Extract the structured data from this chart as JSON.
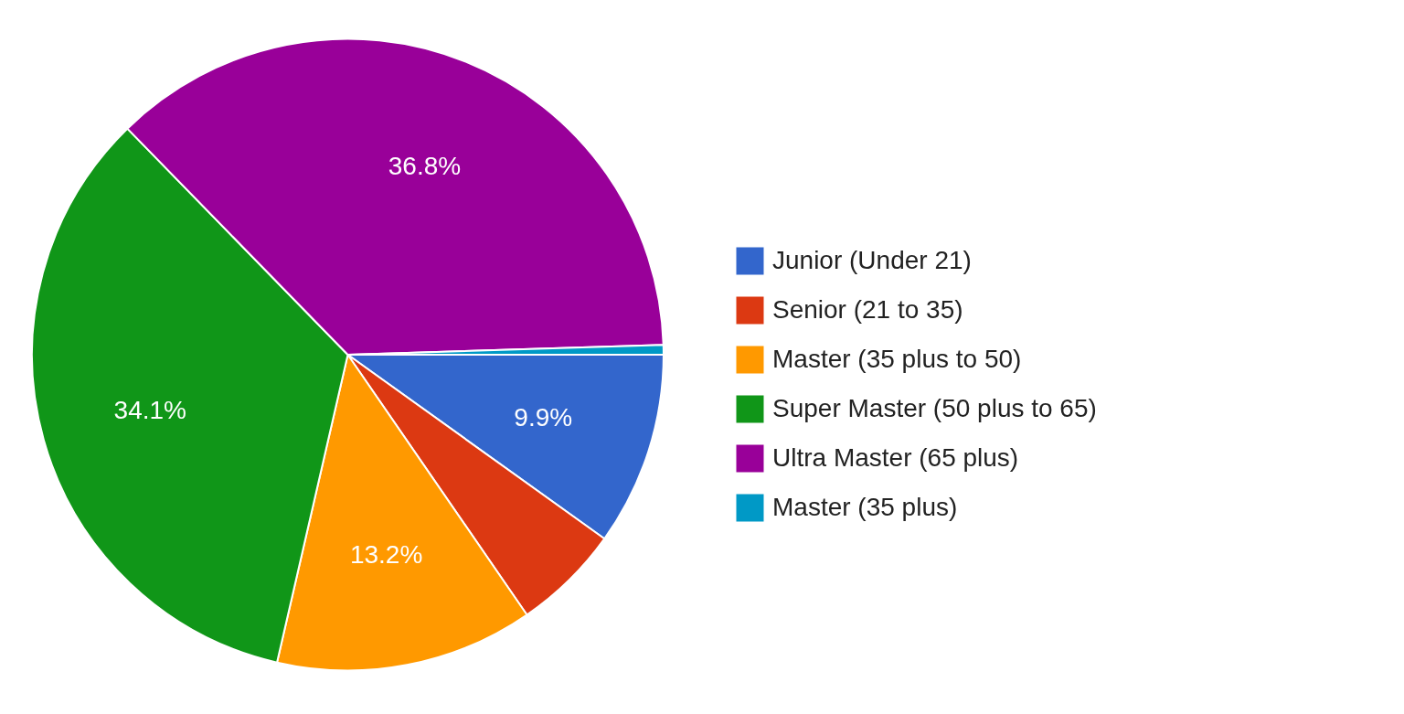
{
  "chart_data": {
    "type": "pie",
    "categories": [
      "Junior (Under 21)",
      "Senior (21 to 35)",
      "Master (35 plus to 50)",
      "Super Master (50 plus to 65)",
      "Ultra Master (65 plus)",
      "Master (35 plus)"
    ],
    "values": [
      9.9,
      5.5,
      13.2,
      34.1,
      36.8,
      0.5
    ],
    "colors": [
      "#3366cc",
      "#dc3912",
      "#ff9900",
      "#109618",
      "#990099",
      "#0099c6"
    ],
    "value_labels": [
      "9.9%",
      null,
      "13.2%",
      "34.1%",
      "36.8%",
      null
    ],
    "legend": "right"
  }
}
